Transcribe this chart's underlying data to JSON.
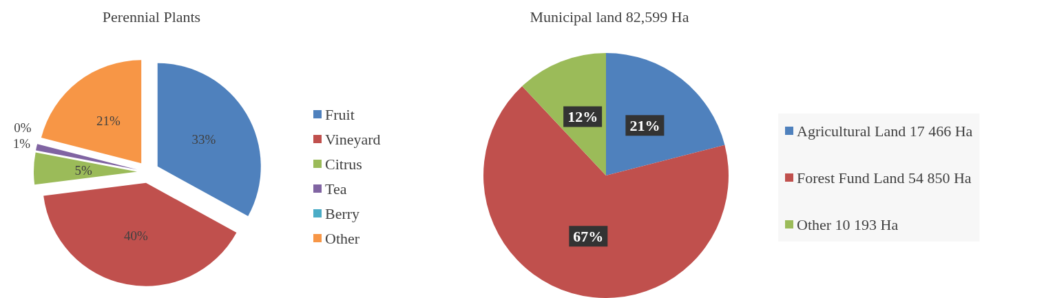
{
  "chart_data": [
    {
      "type": "pie",
      "title": "Perennial Plants",
      "categories": [
        "Fruit",
        "Vineyard",
        "Citrus",
        "Tea",
        "Berry",
        "Other"
      ],
      "values": [
        33,
        40,
        5,
        1,
        0,
        21
      ],
      "colors": [
        "#4f81bd",
        "#c0504d",
        "#9bbb59",
        "#8064a2",
        "#4bacc6",
        "#f79646"
      ],
      "value_labels": [
        "33%",
        "40%",
        "5%",
        "1%",
        "0%",
        "21%"
      ],
      "legend": "right"
    },
    {
      "type": "pie",
      "title": "Municipal land 82,599 Ha",
      "categories": [
        "Agricultural Land 17 466 Ha",
        "Forest Fund Land 54 850 Ha",
        "Other 10 193 Ha"
      ],
      "values": [
        21,
        67,
        12
      ],
      "colors": [
        "#4f81bd",
        "#c0504d",
        "#9bbb59"
      ],
      "value_labels": [
        "21%",
        "67%",
        "12%"
      ],
      "legend": "right"
    }
  ]
}
